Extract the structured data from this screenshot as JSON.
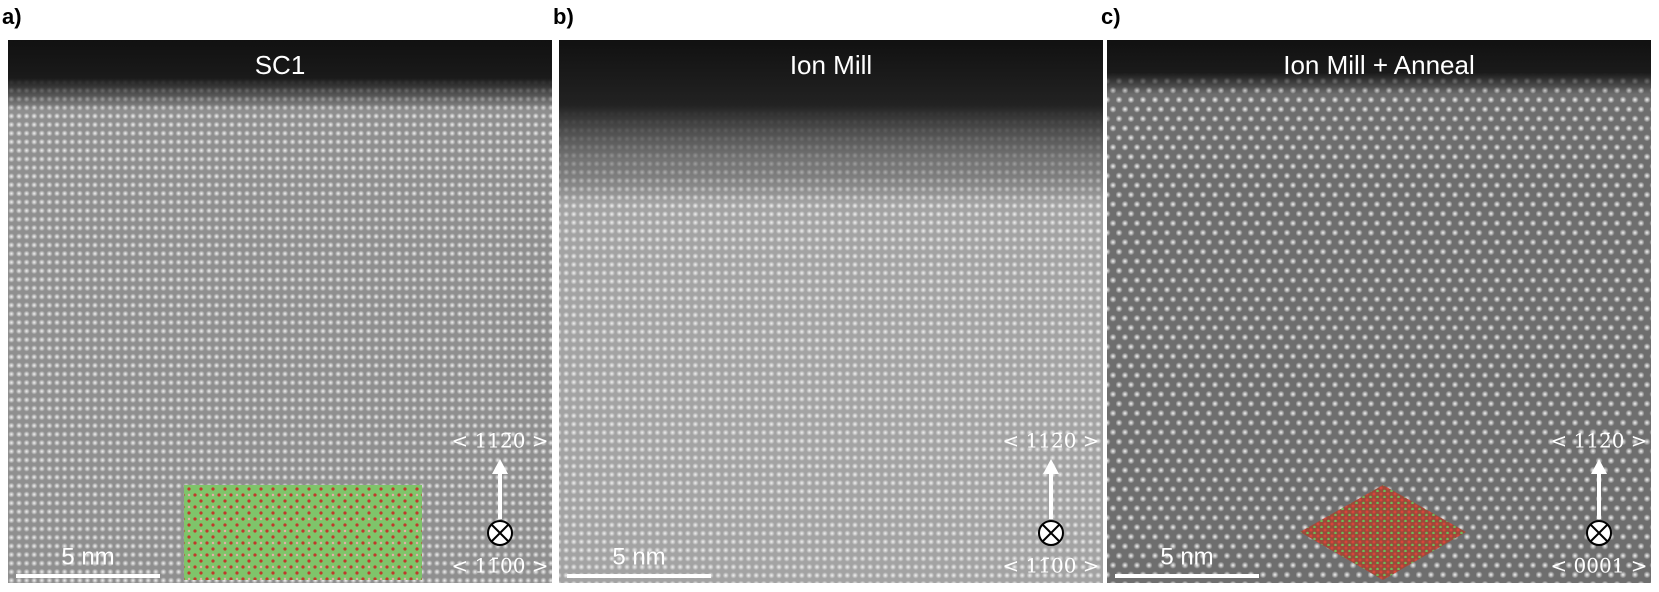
{
  "panels": [
    {
      "label": "a)",
      "title": "SC1",
      "top_axis": "< 112̄0 >",
      "bottom_axis": "< 11̄00 >",
      "scale_bar": "5 nm"
    },
    {
      "label": "b)",
      "title": "Ion Mill",
      "top_axis": "< 112̄0 >",
      "bottom_axis": "< 11̄00 >",
      "scale_bar": "5 nm"
    },
    {
      "label": "c)",
      "title": "Ion Mill + Anneal",
      "top_axis": "< 112̄0 >",
      "bottom_axis": "< 0001 >",
      "scale_bar": "5 nm"
    }
  ]
}
